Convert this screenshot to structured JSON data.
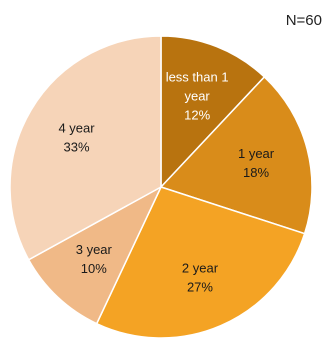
{
  "chart_data": {
    "type": "pie",
    "note": "N=60",
    "start_angle_deg": 0,
    "direction": "clockwise",
    "slices": [
      {
        "label": "less than 1 year",
        "label_lines": [
          "less than 1",
          "year"
        ],
        "pct_label": "12%",
        "value": 12,
        "color": "#b8730f",
        "text_color": "#ffffff"
      },
      {
        "label": "1 year",
        "label_lines": [
          "1 year"
        ],
        "pct_label": "18%",
        "value": 18,
        "color": "#d98c1a",
        "text_color": "#1a1a1a"
      },
      {
        "label": "2 year",
        "label_lines": [
          "2 year"
        ],
        "pct_label": "27%",
        "value": 27,
        "color": "#f4a324",
        "text_color": "#1a1a1a"
      },
      {
        "label": "3 year",
        "label_lines": [
          "3 year"
        ],
        "pct_label": "10%",
        "value": 10,
        "color": "#f0b987",
        "text_color": "#1a1a1a"
      },
      {
        "label": "4 year",
        "label_lines": [
          "4 year"
        ],
        "pct_label": "33%",
        "value": 33,
        "color": "#f6d4b8",
        "text_color": "#1a1a1a"
      }
    ]
  }
}
